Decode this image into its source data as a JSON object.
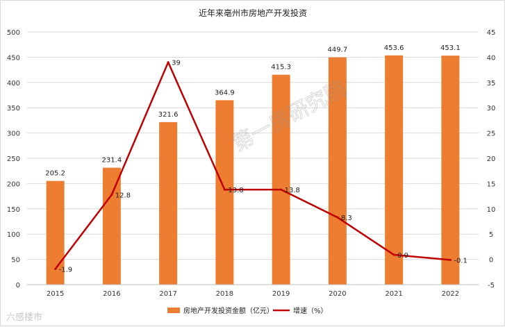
{
  "chart_data": {
    "type": "bar",
    "title": "近年来亳州市房地产开发投资",
    "categories": [
      "2015",
      "2016",
      "2017",
      "2018",
      "2019",
      "2020",
      "2021",
      "2022"
    ],
    "series": [
      {
        "name": "房地产开发投资金额（亿元）",
        "type": "bar",
        "axis": "left",
        "color": "#ED7D31",
        "values": [
          205.2,
          231.4,
          321.6,
          364.9,
          415.3,
          449.7,
          453.6,
          453.1
        ],
        "labels": [
          "205.2",
          "231.4",
          "321.6",
          "364.9",
          "415.3",
          "449.7",
          "453.6",
          "453.1"
        ]
      },
      {
        "name": "增速（%）",
        "type": "line",
        "axis": "right",
        "color": "#C00000",
        "values": [
          -1.9,
          12.8,
          39,
          13.8,
          13.8,
          8.3,
          0.9,
          -0.1
        ],
        "labels": [
          "-1.9",
          "12.8",
          "39",
          "13.8",
          "13.8",
          "8.3",
          "0.9",
          "-0.1"
        ]
      }
    ],
    "y_left": {
      "min": 0,
      "max": 500,
      "ticks": [
        "0",
        "50",
        "100",
        "150",
        "200",
        "250",
        "300",
        "350",
        "400",
        "450",
        "500"
      ]
    },
    "y_right": {
      "min": -5,
      "max": 45,
      "ticks": [
        "-5",
        "0",
        "5",
        "10",
        "15",
        "20",
        "25",
        "30",
        "35",
        "40",
        "45"
      ]
    },
    "grid": true,
    "legend_position": "bottom"
  },
  "watermark": {
    "center": "第一房研究院",
    "corner": "六感楼市"
  }
}
